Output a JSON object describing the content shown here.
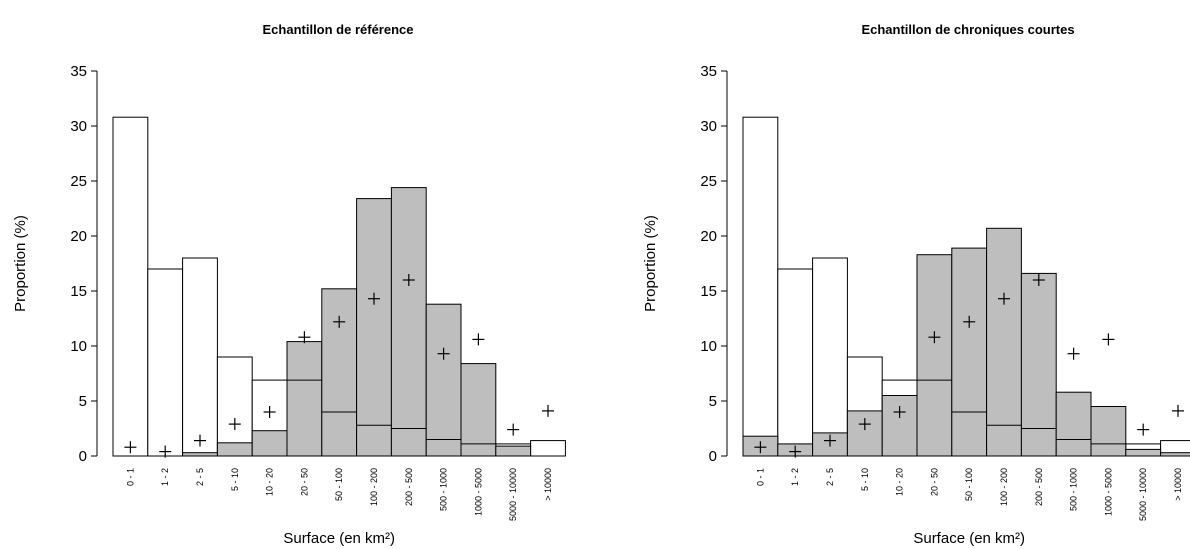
{
  "chart_data": [
    {
      "type": "bar",
      "title": "Echantillon de référence",
      "xlabel": "Surface (en km²)",
      "ylabel": "Proportion (%)",
      "ylim": [
        0,
        35
      ],
      "yticks": [
        0,
        5,
        10,
        15,
        20,
        25,
        30,
        35
      ],
      "grid": false,
      "categories": [
        "0 - 1",
        "1 - 2",
        "2 - 5",
        "5 - 10",
        "10 - 20",
        "20 - 50",
        "50 - 100",
        "100 - 200",
        "200 - 500",
        "500 - 1000",
        "1000 - 5000",
        "5000 - 10000",
        "> 10000"
      ],
      "series": [
        {
          "style": "white-outline",
          "values": [
            30.8,
            17.0,
            18.0,
            9.0,
            6.9,
            6.9,
            4.0,
            2.8,
            2.5,
            1.5,
            1.1,
            1.1,
            1.4
          ]
        },
        {
          "style": "gray-fill",
          "values": [
            0,
            0,
            0.3,
            1.2,
            2.3,
            10.4,
            15.2,
            23.4,
            24.4,
            13.8,
            8.4,
            0.9,
            0
          ]
        },
        {
          "style": "plus-marker",
          "values": [
            0.8,
            0.4,
            1.4,
            2.9,
            4.0,
            10.8,
            12.2,
            14.3,
            16.0,
            9.3,
            10.6,
            2.4,
            4.1
          ]
        }
      ]
    },
    {
      "type": "bar",
      "title": "Echantillon de chroniques courtes",
      "xlabel": "Surface (en km²)",
      "ylabel": "Proportion (%)",
      "ylim": [
        0,
        35
      ],
      "yticks": [
        0,
        5,
        10,
        15,
        20,
        25,
        30,
        35
      ],
      "grid": false,
      "categories": [
        "0 - 1",
        "1 - 2",
        "2 - 5",
        "5 - 10",
        "10 - 20",
        "20 - 50",
        "50 - 100",
        "100 - 200",
        "200 - 500",
        "500 - 1000",
        "1000 - 5000",
        "5000 - 10000",
        "> 10000"
      ],
      "series": [
        {
          "style": "white-outline",
          "values": [
            30.8,
            17.0,
            18.0,
            9.0,
            6.9,
            6.9,
            4.0,
            2.8,
            2.5,
            1.5,
            1.1,
            1.1,
            1.4
          ]
        },
        {
          "style": "gray-fill",
          "values": [
            1.8,
            1.1,
            2.1,
            4.1,
            5.5,
            18.3,
            18.9,
            20.7,
            16.6,
            5.8,
            4.5,
            0.6,
            0.3
          ]
        },
        {
          "style": "plus-marker",
          "values": [
            0.8,
            0.4,
            1.4,
            2.9,
            4.0,
            10.8,
            12.2,
            14.3,
            16.0,
            9.3,
            10.6,
            2.4,
            4.1
          ]
        }
      ]
    }
  ]
}
